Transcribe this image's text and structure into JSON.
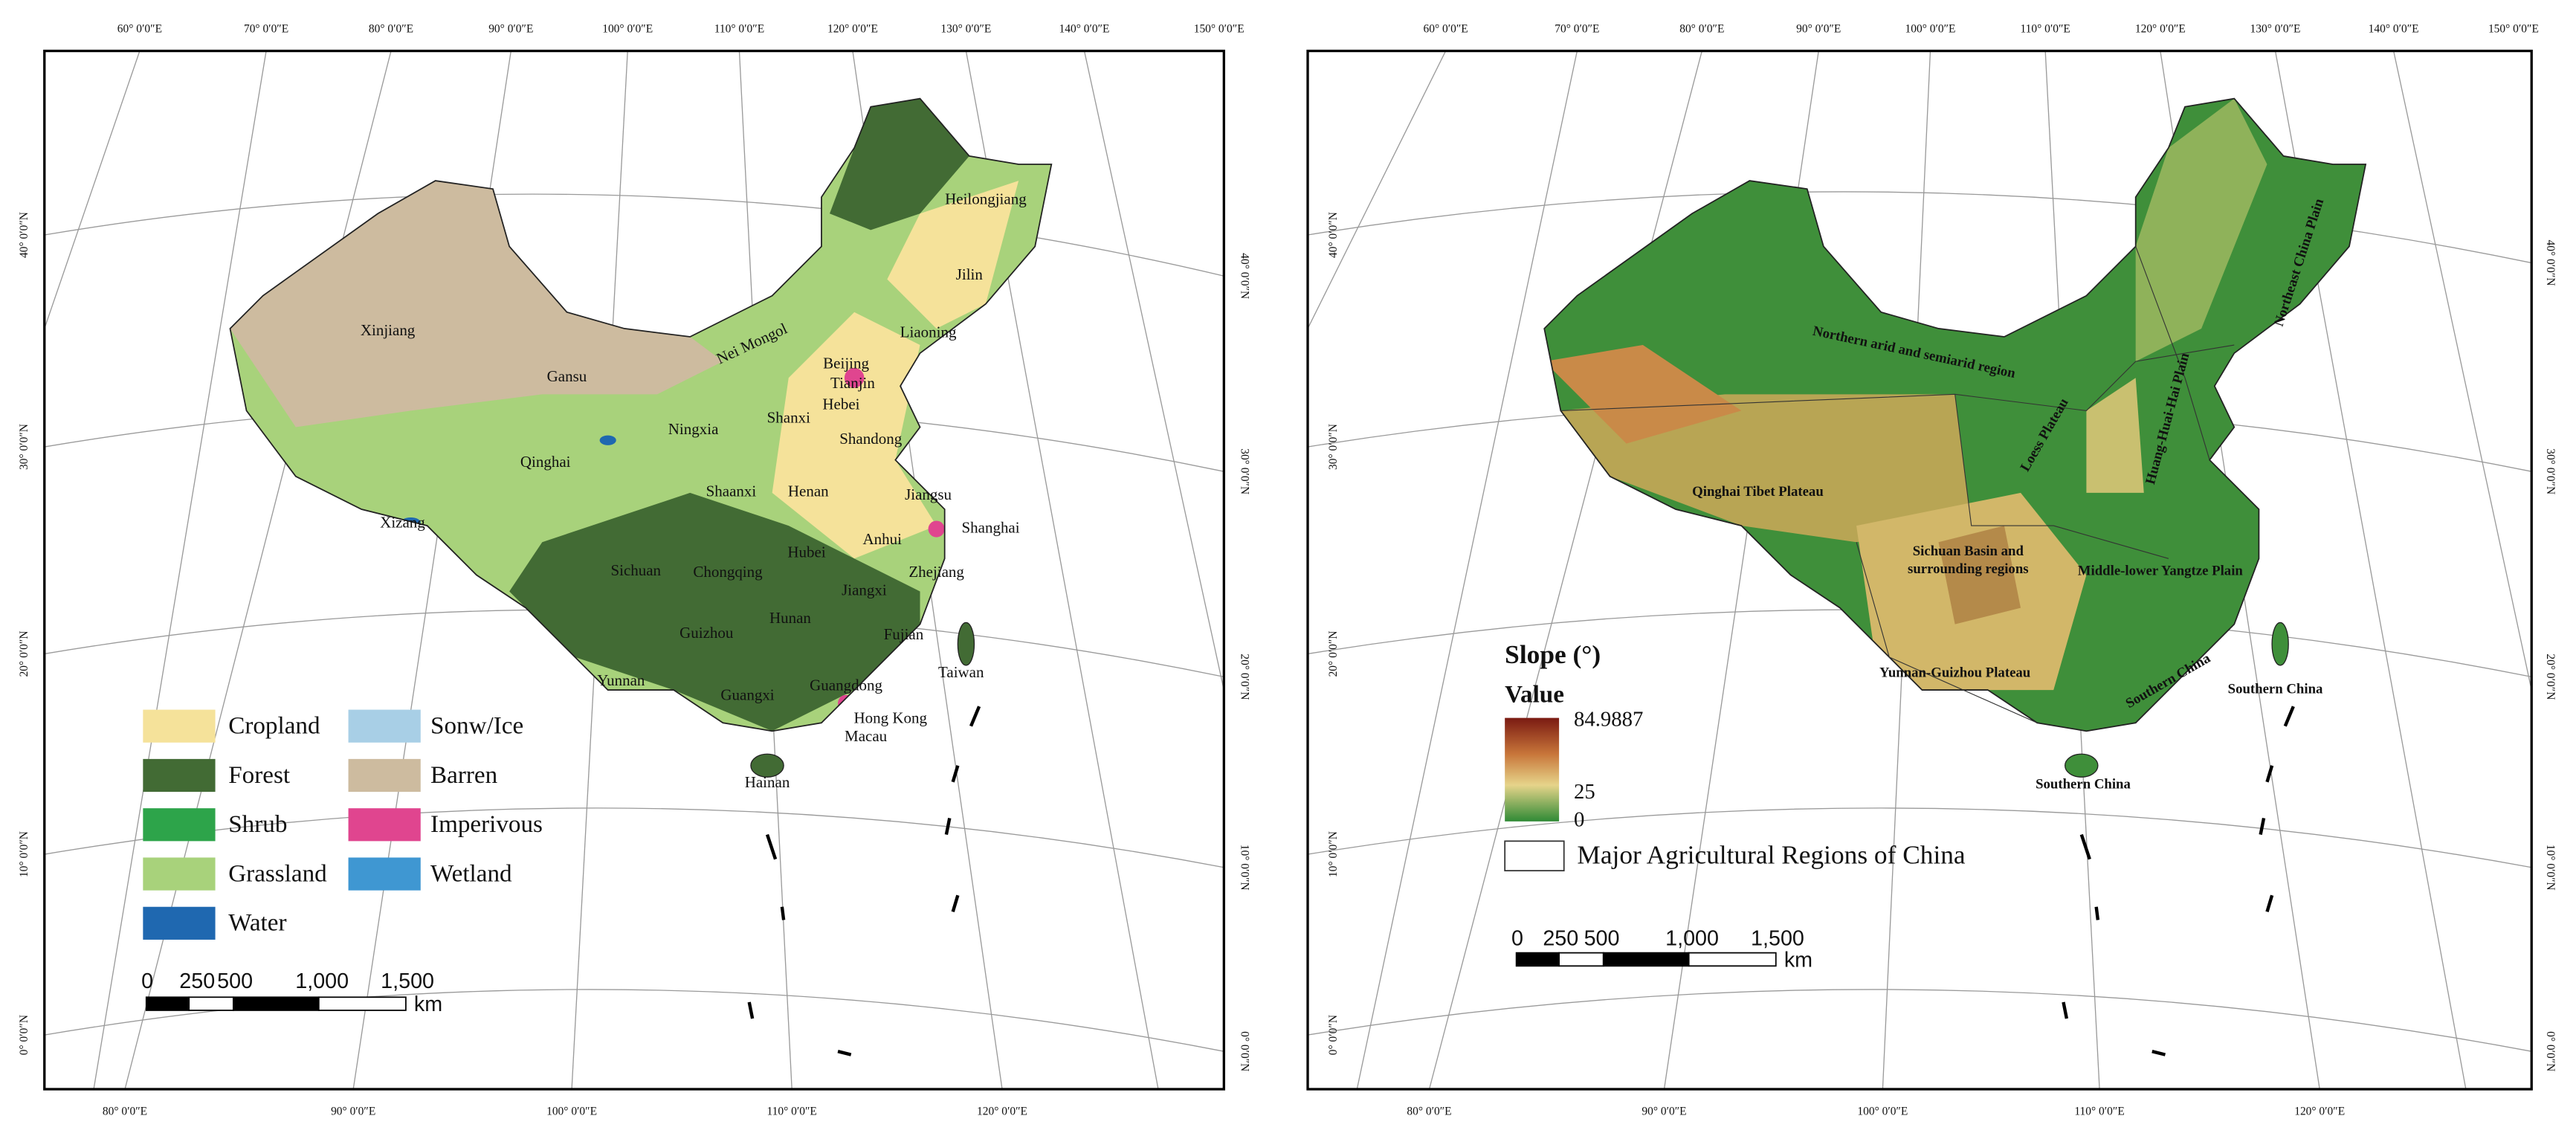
{
  "left_map": {
    "top_labels": [
      "60° 0′0″E",
      "70° 0′0″E",
      "80° 0′0″E",
      "90° 0′0″E",
      "100° 0′0″E",
      "110° 0′0″E",
      "120° 0′0″E",
      "130° 0′0″E",
      "140° 0′0″E",
      "150° 0′0″E"
    ],
    "bottom_labels": [
      "80° 0′0″E",
      "90° 0′0″E",
      "100° 0′0″E",
      "110° 0′0″E",
      "120° 0′0″E"
    ],
    "left_labels": [
      "40° 0′0″N",
      "30° 0′0″N",
      "20° 0′0″N",
      "10° 0′0″N",
      "0° 0′0″N"
    ],
    "right_labels": [
      "40° 0′0″N",
      "30° 0′0″N",
      "20° 0′0″N",
      "10° 0′0″N",
      "0° 0′0″N"
    ],
    "place_labels": [
      "Heilongjiang",
      "Jilin",
      "Liaoning",
      "Nei Mongol",
      "Xinjiang",
      "Gansu",
      "Beijing",
      "Tianjin",
      "Hebei",
      "Ningxia",
      "Shanxi",
      "Shandong",
      "Qinghai",
      "Shaanxi",
      "Henan",
      "Jiangsu",
      "Shanghai",
      "Xizang",
      "Sichuan",
      "Chongqing",
      "Hubei",
      "Anhui",
      "Zhejiang",
      "Jiangxi",
      "Hunan",
      "Guizhou",
      "Fujian",
      "Yunnan",
      "Taiwan",
      "Guangdong",
      "Guangxi",
      "Hong Kong",
      "Macau",
      "Hainan"
    ],
    "legend": [
      "Cropland",
      "Forest",
      "Shrub",
      "Grassland",
      "Water",
      "Sonw/Ice",
      "Barren",
      "Imperivous",
      "Wetland"
    ],
    "scale_bar": {
      "ticks": [
        "0",
        "250",
        "500",
        "1,000",
        "1,500"
      ],
      "unit": "km"
    }
  },
  "right_map": {
    "top_labels": [
      "60° 0′0″E",
      "70° 0′0″E",
      "80° 0′0″E",
      "90° 0′0″E",
      "100° 0′0″E",
      "110° 0′0″E",
      "120° 0′0″E",
      "130° 0′0″E",
      "140° 0′0″E",
      "150° 0′0″E"
    ],
    "bottom_labels": [
      "80° 0′0″E",
      "90° 0′0″E",
      "100° 0′0″E",
      "110° 0′0″E",
      "120° 0′0″E"
    ],
    "left_labels": [
      "40° 0′0″N",
      "30° 0′0″N",
      "20° 0′0″N",
      "10° 0′0″N",
      "0° 0′0″N"
    ],
    "right_labels": [
      "40° 0′0″N",
      "30° 0′0″N",
      "20° 0′0″N",
      "10° 0′0″N",
      "0° 0′0″N"
    ],
    "region_labels": [
      "Northern arid and semiarid region",
      "Northeast China Plain",
      "Huang-Huai-Hai Plain",
      "Loess Plateau",
      "Qinghai Tibet Plateau",
      "Sichuan Basin and",
      "surrounding regions",
      "Middle-lower Yangtze Plain",
      "Yunnan-Guizhou Plateau",
      "Southern China",
      "Southern China",
      "Southern China"
    ],
    "legend": {
      "title": "Slope (°)",
      "subtitle": "Value",
      "high": "84.9887",
      "mid": "25",
      "low": "0",
      "boundary": "Major Agricultural Regions of China"
    },
    "scale_bar": {
      "ticks": [
        "0",
        "250",
        "500",
        "1,000",
        "1,500"
      ],
      "unit": "km"
    }
  }
}
